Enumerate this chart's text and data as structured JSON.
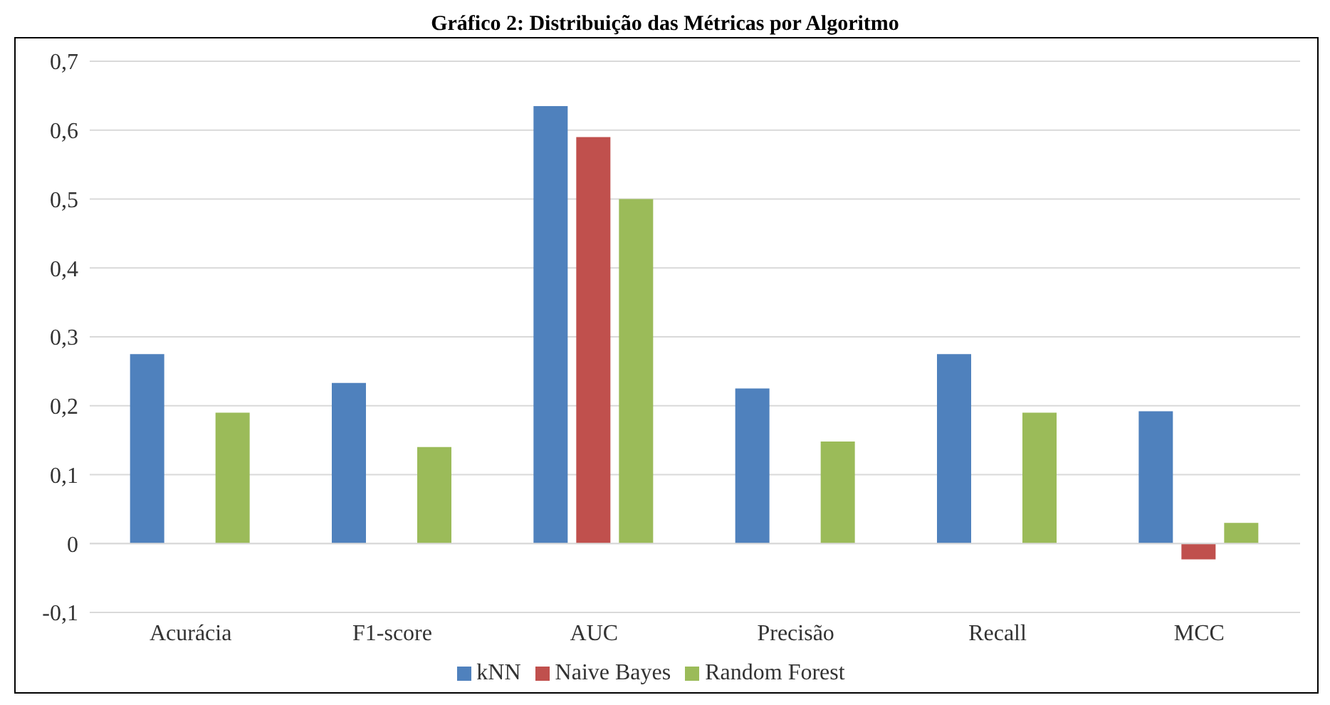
{
  "chart_data": {
    "type": "bar",
    "title": "Gráfico 2: Distribuição das Métricas por Algoritmo",
    "categories": [
      "Acurácia",
      "F1-score",
      "AUC",
      "Precisão",
      "Recall",
      "MCC"
    ],
    "series": [
      {
        "name": "kNN",
        "color": "#4f81bd",
        "values": [
          0.275,
          0.233,
          0.635,
          0.225,
          0.275,
          0.192
        ]
      },
      {
        "name": "Naive Bayes",
        "color": "#c0504d",
        "values": [
          null,
          null,
          0.59,
          null,
          null,
          -0.023
        ]
      },
      {
        "name": "Random Forest",
        "color": "#9bbb59",
        "values": [
          0.19,
          0.14,
          0.5,
          0.148,
          0.19,
          0.03
        ]
      }
    ],
    "ylim": [
      -0.1,
      0.7
    ],
    "yticks": [
      {
        "value": -0.1,
        "label": "-0,1"
      },
      {
        "value": 0,
        "label": "0"
      },
      {
        "value": 0.1,
        "label": "0,1"
      },
      {
        "value": 0.2,
        "label": "0,2"
      },
      {
        "value": 0.3,
        "label": "0,3"
      },
      {
        "value": 0.4,
        "label": "0,4"
      },
      {
        "value": 0.5,
        "label": "0,5"
      },
      {
        "value": 0.6,
        "label": "0,6"
      },
      {
        "value": 0.7,
        "label": "0,7"
      }
    ],
    "grid": "y",
    "legend": "bottom"
  }
}
